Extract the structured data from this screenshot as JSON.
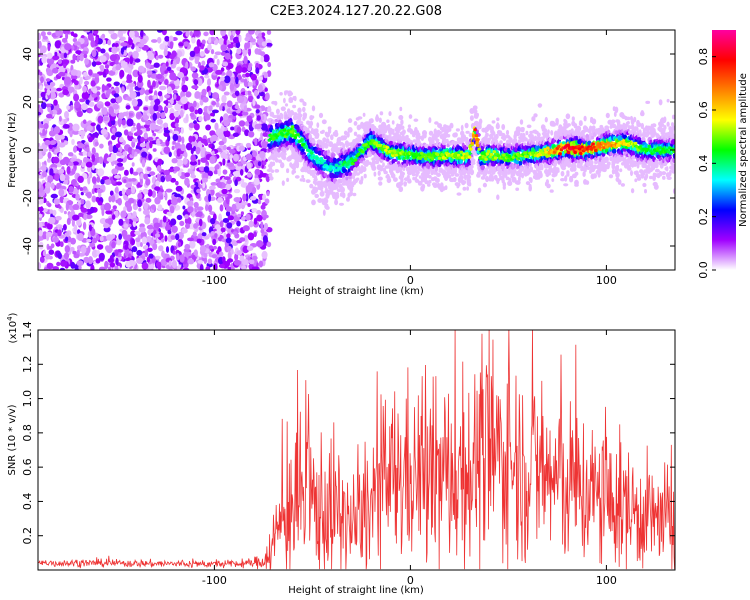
{
  "title": "C2E3.2024.127.20.22.G08",
  "chart_data": [
    {
      "type": "heatmap",
      "xlabel": "Height of straight line (km)",
      "ylabel": "Frequency (Hz)",
      "xlim": [
        -190,
        135
      ],
      "ylim": [
        -50,
        50
      ],
      "xticks": [
        -100,
        0,
        100
      ],
      "yticks": [
        -40,
        -20,
        0,
        20,
        40
      ],
      "colorbar": {
        "label": "Normalized spectral amplitude",
        "range": [
          0.0,
          0.9
        ],
        "ticks": [
          0.0,
          0.2,
          0.4,
          0.6,
          0.8
        ],
        "colors": [
          "#ffffff",
          "#a000ff",
          "#0000ff",
          "#00ffff",
          "#00ff00",
          "#ffff00",
          "#ff8000",
          "#ff0000",
          "#ff00a0"
        ]
      },
      "noise_region": {
        "x_start": -190,
        "x_end": -72,
        "y_range": [
          -50,
          50
        ]
      },
      "signal_band": {
        "x": [
          -72,
          -60,
          -50,
          -40,
          -30,
          -20,
          -10,
          0,
          10,
          20,
          30,
          33,
          36,
          40,
          50,
          60,
          70,
          80,
          90,
          100,
          110,
          120,
          135
        ],
        "center_freq": [
          5,
          8,
          -2,
          -8,
          -5,
          4,
          -1,
          -2,
          -3,
          -2,
          -3,
          8,
          -3,
          -2,
          -3,
          -2,
          -1,
          1,
          0,
          2,
          3,
          0,
          0
        ],
        "peak_amplitude": [
          0.45,
          0.5,
          0.4,
          0.35,
          0.45,
          0.5,
          0.55,
          0.5,
          0.5,
          0.55,
          0.55,
          0.75,
          0.5,
          0.55,
          0.5,
          0.5,
          0.6,
          0.85,
          0.8,
          0.7,
          0.6,
          0.45,
          0.45
        ]
      }
    },
    {
      "type": "line",
      "xlabel": "Height of straight line (km)",
      "ylabel": "SNR (10 * v/v)",
      "scale_label": "(x10",
      "scale_exp": "4",
      "scale_close": ")",
      "xlim": [
        -190,
        135
      ],
      "ylim": [
        0,
        1.4
      ],
      "xticks": [
        -100,
        0,
        100
      ],
      "yticks": [
        0.2,
        0.4,
        0.6,
        0.8,
        1.0,
        1.2,
        1.4
      ],
      "series": [
        {
          "color": "#ee3333",
          "x": [
            -190,
            -150,
            -110,
            -85,
            -75,
            -70,
            -65,
            -60,
            -55,
            -50,
            -45,
            -40,
            -35,
            -30,
            -25,
            -20,
            -15,
            -10,
            -5,
            0,
            5,
            10,
            20,
            30,
            40,
            45,
            50,
            60,
            70,
            80,
            90,
            100,
            110,
            120,
            130,
            135
          ],
          "mean": [
            0.04,
            0.04,
            0.035,
            0.035,
            0.05,
            0.15,
            0.3,
            0.38,
            0.4,
            0.38,
            0.36,
            0.35,
            0.3,
            0.26,
            0.28,
            0.38,
            0.48,
            0.52,
            0.55,
            0.56,
            0.55,
            0.52,
            0.55,
            0.6,
            0.65,
            0.68,
            0.66,
            0.6,
            0.55,
            0.5,
            0.45,
            0.4,
            0.36,
            0.32,
            0.28,
            0.26
          ],
          "spread": [
            0.02,
            0.02,
            0.02,
            0.02,
            0.04,
            0.2,
            0.32,
            0.4,
            0.45,
            0.4,
            0.4,
            0.42,
            0.36,
            0.3,
            0.3,
            0.38,
            0.45,
            0.48,
            0.5,
            0.5,
            0.48,
            0.48,
            0.5,
            0.52,
            0.55,
            0.58,
            0.55,
            0.5,
            0.48,
            0.45,
            0.42,
            0.38,
            0.35,
            0.3,
            0.3,
            0.3
          ]
        }
      ]
    }
  ]
}
